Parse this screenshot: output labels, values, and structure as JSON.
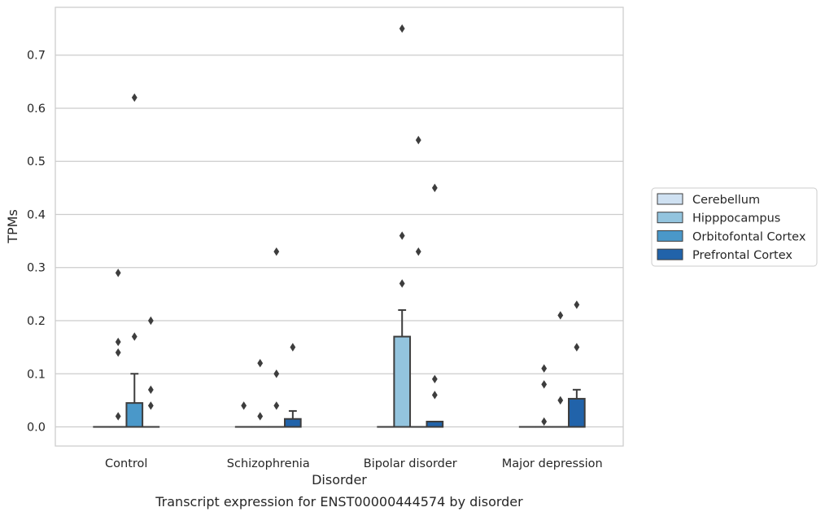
{
  "chart_data": {
    "type": "box",
    "caption": "Transcript expression for ENST00000444574 by disorder",
    "xlabel": "Disorder",
    "ylabel": "TPMs",
    "ylim": [
      -0.036,
      0.79
    ],
    "yticks": [
      0.0,
      0.1,
      0.2,
      0.3,
      0.4,
      0.5,
      0.6,
      0.7
    ],
    "ytick_labels": [
      "0.0",
      "0.1",
      "0.2",
      "0.3",
      "0.4",
      "0.5",
      "0.6",
      "0.7"
    ],
    "grid": "horizontal",
    "legend_position": "right",
    "categories": [
      "Control",
      "Schizophrenia",
      "Bipolar disorder",
      "Major depression"
    ],
    "series": [
      {
        "name": "Cerebellum",
        "color": "#cfe1f2",
        "boxes": [
          {
            "q1": 0,
            "median": 0,
            "q3": 0,
            "whisker_low": 0,
            "whisker_high": 0,
            "outliers": []
          },
          {
            "q1": 0,
            "median": 0,
            "q3": 0,
            "whisker_low": 0,
            "whisker_high": 0,
            "outliers": [
              0.04
            ]
          },
          {
            "q1": 0,
            "median": 0,
            "q3": 0,
            "whisker_low": 0,
            "whisker_high": 0,
            "outliers": []
          },
          {
            "q1": 0,
            "median": 0,
            "q3": 0,
            "whisker_low": 0,
            "whisker_high": 0,
            "outliers": []
          }
        ]
      },
      {
        "name": "Hipppocampus",
        "color": "#93c4de",
        "boxes": [
          {
            "q1": 0,
            "median": 0,
            "q3": 0,
            "whisker_low": 0,
            "whisker_high": 0,
            "outliers": [
              0.16,
              0.14,
              0.02,
              0.29
            ]
          },
          {
            "q1": 0,
            "median": 0,
            "q3": 0,
            "whisker_low": 0,
            "whisker_high": 0,
            "outliers": [
              0.02,
              0.12
            ]
          },
          {
            "q1": 0,
            "median": 0,
            "q3": 0.17,
            "whisker_low": 0,
            "whisker_high": 0.22,
            "outliers": [
              0.36,
              0.27,
              0.75
            ]
          },
          {
            "q1": 0,
            "median": 0,
            "q3": 0,
            "whisker_low": 0,
            "whisker_high": 0,
            "outliers": [
              0.11,
              0.01,
              0.08
            ]
          }
        ]
      },
      {
        "name": "Orbitofontal Cortex",
        "color": "#4a98c9",
        "boxes": [
          {
            "q1": 0,
            "median": 0,
            "q3": 0.045,
            "whisker_low": 0,
            "whisker_high": 0.1,
            "outliers": [
              0.62,
              0.17
            ]
          },
          {
            "q1": 0,
            "median": 0,
            "q3": 0,
            "whisker_low": 0,
            "whisker_high": 0,
            "outliers": [
              0.1,
              0.04,
              0.33
            ]
          },
          {
            "q1": 0,
            "median": 0,
            "q3": 0,
            "whisker_low": 0,
            "whisker_high": 0,
            "outliers": [
              0.54,
              0.33
            ]
          },
          {
            "q1": 0,
            "median": 0,
            "q3": 0,
            "whisker_low": 0,
            "whisker_high": 0,
            "outliers": [
              0.21,
              0.05
            ]
          }
        ]
      },
      {
        "name": "Prefrontal Cortex",
        "color": "#2163aa",
        "boxes": [
          {
            "q1": 0,
            "median": 0,
            "q3": 0,
            "whisker_low": 0,
            "whisker_high": 0,
            "outliers": [
              0.2,
              0.07,
              0.04
            ]
          },
          {
            "q1": 0,
            "median": 0,
            "q3": 0.015,
            "whisker_low": 0,
            "whisker_high": 0.03,
            "outliers": [
              0.15
            ]
          },
          {
            "q1": 0,
            "median": 0,
            "q3": 0.01,
            "whisker_low": 0,
            "whisker_high": 0.01,
            "outliers": [
              0.45,
              0.09,
              0.06
            ]
          },
          {
            "q1": 0,
            "median": 0,
            "q3": 0.053,
            "whisker_low": 0,
            "whisker_high": 0.07,
            "outliers": [
              0.23,
              0.15
            ]
          }
        ]
      }
    ]
  }
}
